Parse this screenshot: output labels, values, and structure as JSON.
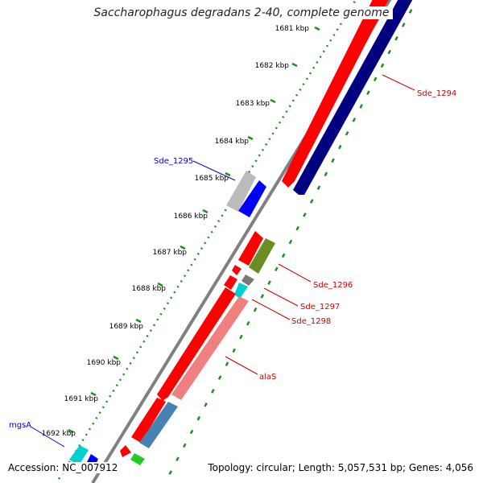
{
  "title": "Saccharophagus degradans 2-40, complete genome",
  "accession": "Accession: NC_007912",
  "topology": "Topology: circular; Length: 5,057,531 bp; Genes: 4,056",
  "ticks": [
    "1681 kbp",
    "1682 kbp",
    "1683 kbp",
    "1684 kbp",
    "1685 kbp",
    "1686 kbp",
    "1687 kbp",
    "1688 kbp",
    "1689 kbp",
    "1690 kbp",
    "1691 kbp",
    "1692 kbp"
  ],
  "gene_labels": {
    "sde_1294": "Sde_1294",
    "sde_1295": "Sde_1295",
    "sde_1296": "Sde_1296",
    "sde_1297": "Sde_1297",
    "sde_1298": "Sde_1298",
    "alas": "alaS",
    "mgsa": "mgsA"
  },
  "colors": {
    "red": "#ff0000",
    "navy": "#000080",
    "blue": "#0000ff",
    "olive": "#6b8e23",
    "cyan": "#00ced1",
    "pink": "#f08080",
    "steelblue": "#4682b4",
    "green": "#22cc22",
    "grey": "#bbbbbb",
    "darkgrey": "#777777",
    "label_red": "#cc0000",
    "label_blue": "#0000cc"
  }
}
